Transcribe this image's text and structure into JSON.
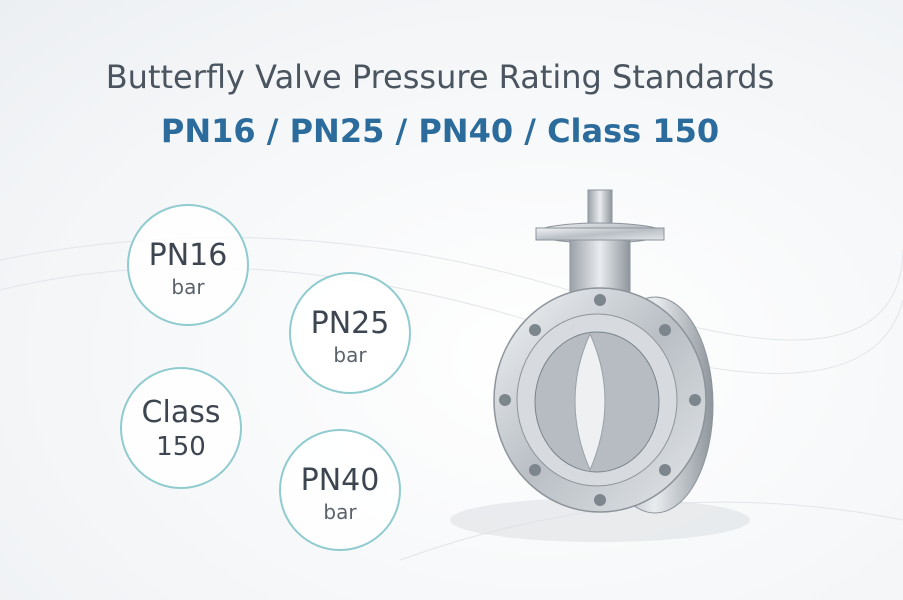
{
  "header": {
    "title": "Butterfly Valve Pressure Rating Standards",
    "subtitle": "PN16 / PN25 / PN40 / Class 150"
  },
  "badges": [
    {
      "main": "PN16",
      "sub": "bar"
    },
    {
      "main": "PN25",
      "sub": "bar"
    },
    {
      "main": "Class",
      "sub": "150"
    },
    {
      "main": "PN40",
      "sub": "bar"
    }
  ]
}
